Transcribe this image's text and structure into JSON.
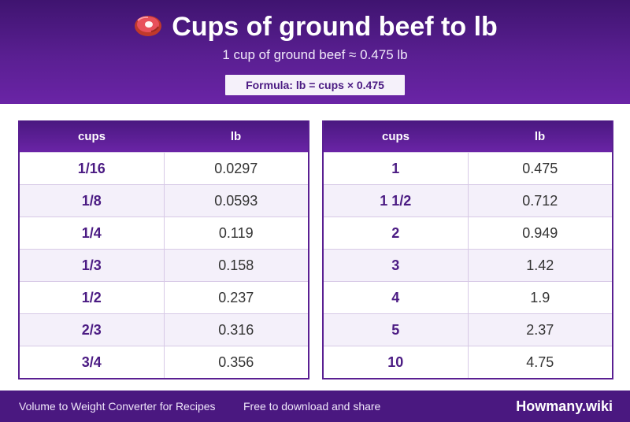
{
  "header": {
    "icon": "meat-on-bone-icon",
    "title": "Cups of ground beef to lb",
    "subtitle": "1 cup of ground beef ≈ 0.475 lb",
    "formula": "Formula: lb = cups × 0.475"
  },
  "tables": [
    {
      "headers": [
        "cups",
        "lb"
      ],
      "rows": [
        [
          "1/16",
          "0.0297"
        ],
        [
          "1/8",
          "0.0593"
        ],
        [
          "1/4",
          "0.119"
        ],
        [
          "1/3",
          "0.158"
        ],
        [
          "1/2",
          "0.237"
        ],
        [
          "2/3",
          "0.316"
        ],
        [
          "3/4",
          "0.356"
        ]
      ]
    },
    {
      "headers": [
        "cups",
        "lb"
      ],
      "rows": [
        [
          "1",
          "0.475"
        ],
        [
          "1 1/2",
          "0.712"
        ],
        [
          "2",
          "0.949"
        ],
        [
          "3",
          "1.42"
        ],
        [
          "4",
          "1.9"
        ],
        [
          "5",
          "2.37"
        ],
        [
          "10",
          "4.75"
        ]
      ]
    }
  ],
  "footer": {
    "left": "Volume to Weight Converter for Recipes",
    "middle": "Free to download and share",
    "brand": "Howmany.wiki"
  },
  "colors": {
    "header_purple": "#5a1f92",
    "accent_text": "#4b1b83",
    "footer_purple": "#4a1880"
  }
}
